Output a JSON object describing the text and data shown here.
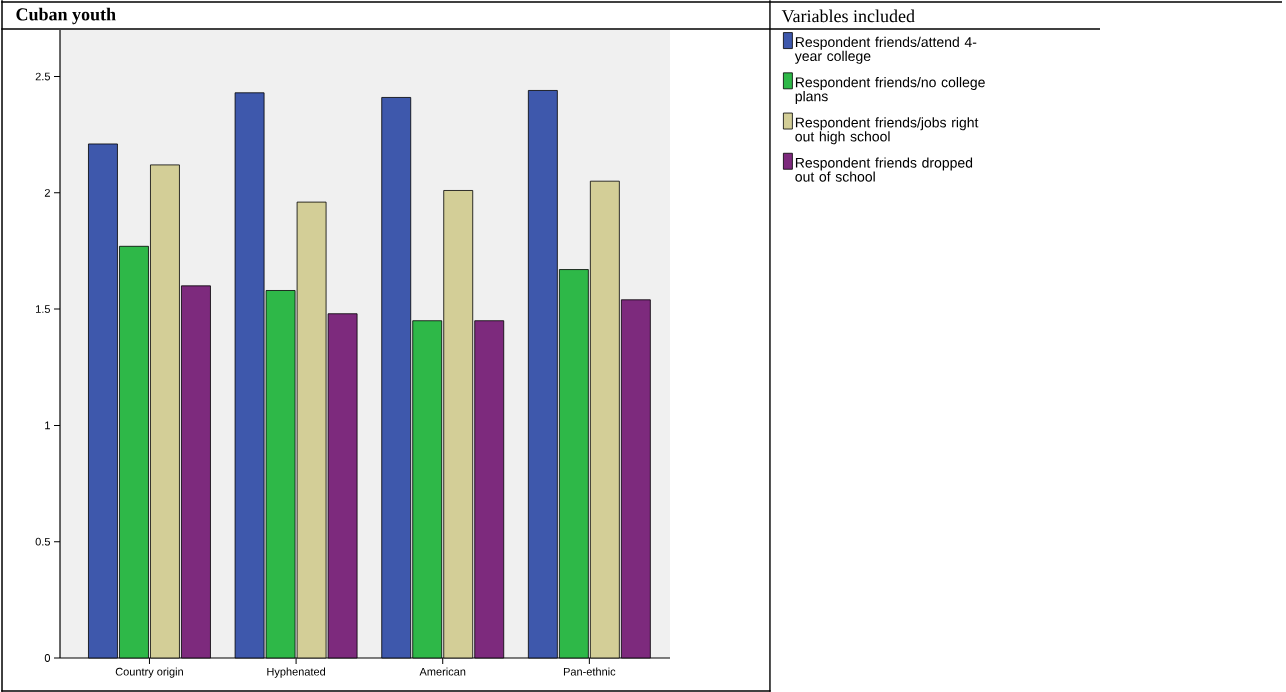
{
  "chart_data": {
    "type": "bar",
    "title": "Cuban youth",
    "legend_title": "Variables included",
    "categories": [
      "Country origin",
      "Hyphenated",
      "American",
      "Pan-ethnic"
    ],
    "series": [
      {
        "name": "Respondent friends/attend 4-year college",
        "color": "#3e58ac",
        "values": [
          2.21,
          2.43,
          2.41,
          2.44
        ]
      },
      {
        "name": "Respondent friends/no college plans",
        "color": "#2eb848",
        "values": [
          1.77,
          1.58,
          1.45,
          1.67
        ]
      },
      {
        "name": "Respondent friends/jobs right out high school",
        "color": "#d3ce97",
        "values": [
          2.12,
          1.96,
          2.01,
          2.05
        ]
      },
      {
        "name": "Respondent friends dropped out of school",
        "color": "#7d2a7d",
        "values": [
          1.6,
          1.48,
          1.45,
          1.54
        ]
      }
    ],
    "ylim": [
      0,
      2.7
    ],
    "yticks": [
      0,
      0.5,
      1,
      1.5,
      2,
      2.5
    ],
    "grid": false,
    "legend": "right"
  }
}
